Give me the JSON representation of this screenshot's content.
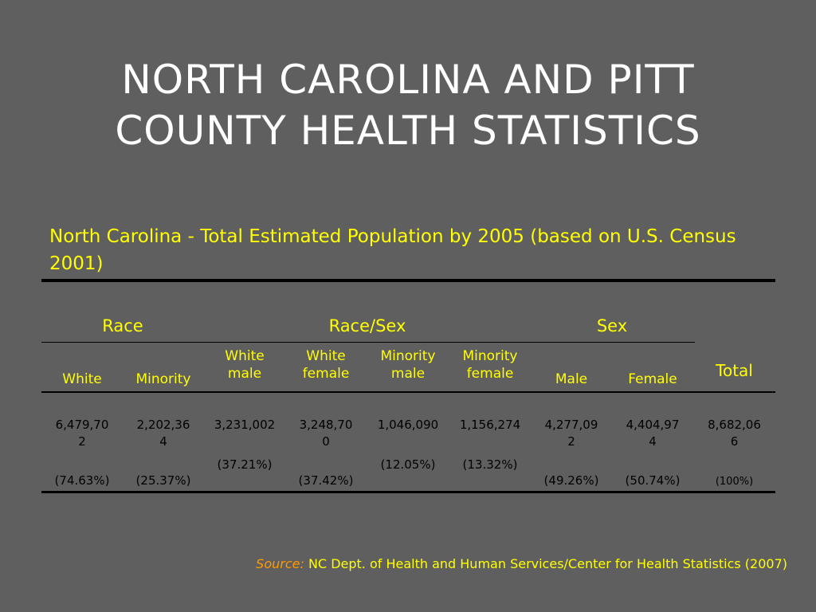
{
  "title_line1": "NORTH CAROLINA AND PITT",
  "title_line2": "COUNTY HEALTH STATISTICS",
  "subtitle": "North Carolina - Total Estimated Population by 2005 (based on U.S. Census 2001)",
  "groups": {
    "race": "Race",
    "race_sex": "Race/Sex",
    "sex": "Sex"
  },
  "columns": {
    "white": "White",
    "minority": "Minority",
    "white_male_1": "White",
    "white_male_2": "male",
    "white_female_1": "White",
    "white_female_2": "female",
    "minority_male_1": "Minority",
    "minority_male_2": "male",
    "minority_female_1": "Minority",
    "minority_female_2": "female",
    "male": "Male",
    "female": "Female",
    "total": "Total"
  },
  "values": {
    "white_1": "6,479,70",
    "white_2": "2",
    "minority_1": "2,202,36",
    "minority_2": "4",
    "white_male": "3,231,002",
    "white_female_1": "3,248,70",
    "white_female_2": "0",
    "minority_male": "1,046,090",
    "minority_female": "1,156,274",
    "male_1": "4,277,09",
    "male_2": "2",
    "female_1": "4,404,97",
    "female_2": "4",
    "total_1": "8,682,06",
    "total_2": "6"
  },
  "percents": {
    "white": "(74.63%)",
    "minority": "(25.37%)",
    "white_male": "(37.21%)",
    "white_female": "(37.42%)",
    "minority_male": "(12.05%)",
    "minority_female": "(13.32%)",
    "male": "(49.26%)",
    "female": "(50.74%)",
    "total": "(100%)"
  },
  "source_label": "Source:",
  "source_text": " NC Dept. of Health and Human Services/Center for Health Statistics (2007)"
}
